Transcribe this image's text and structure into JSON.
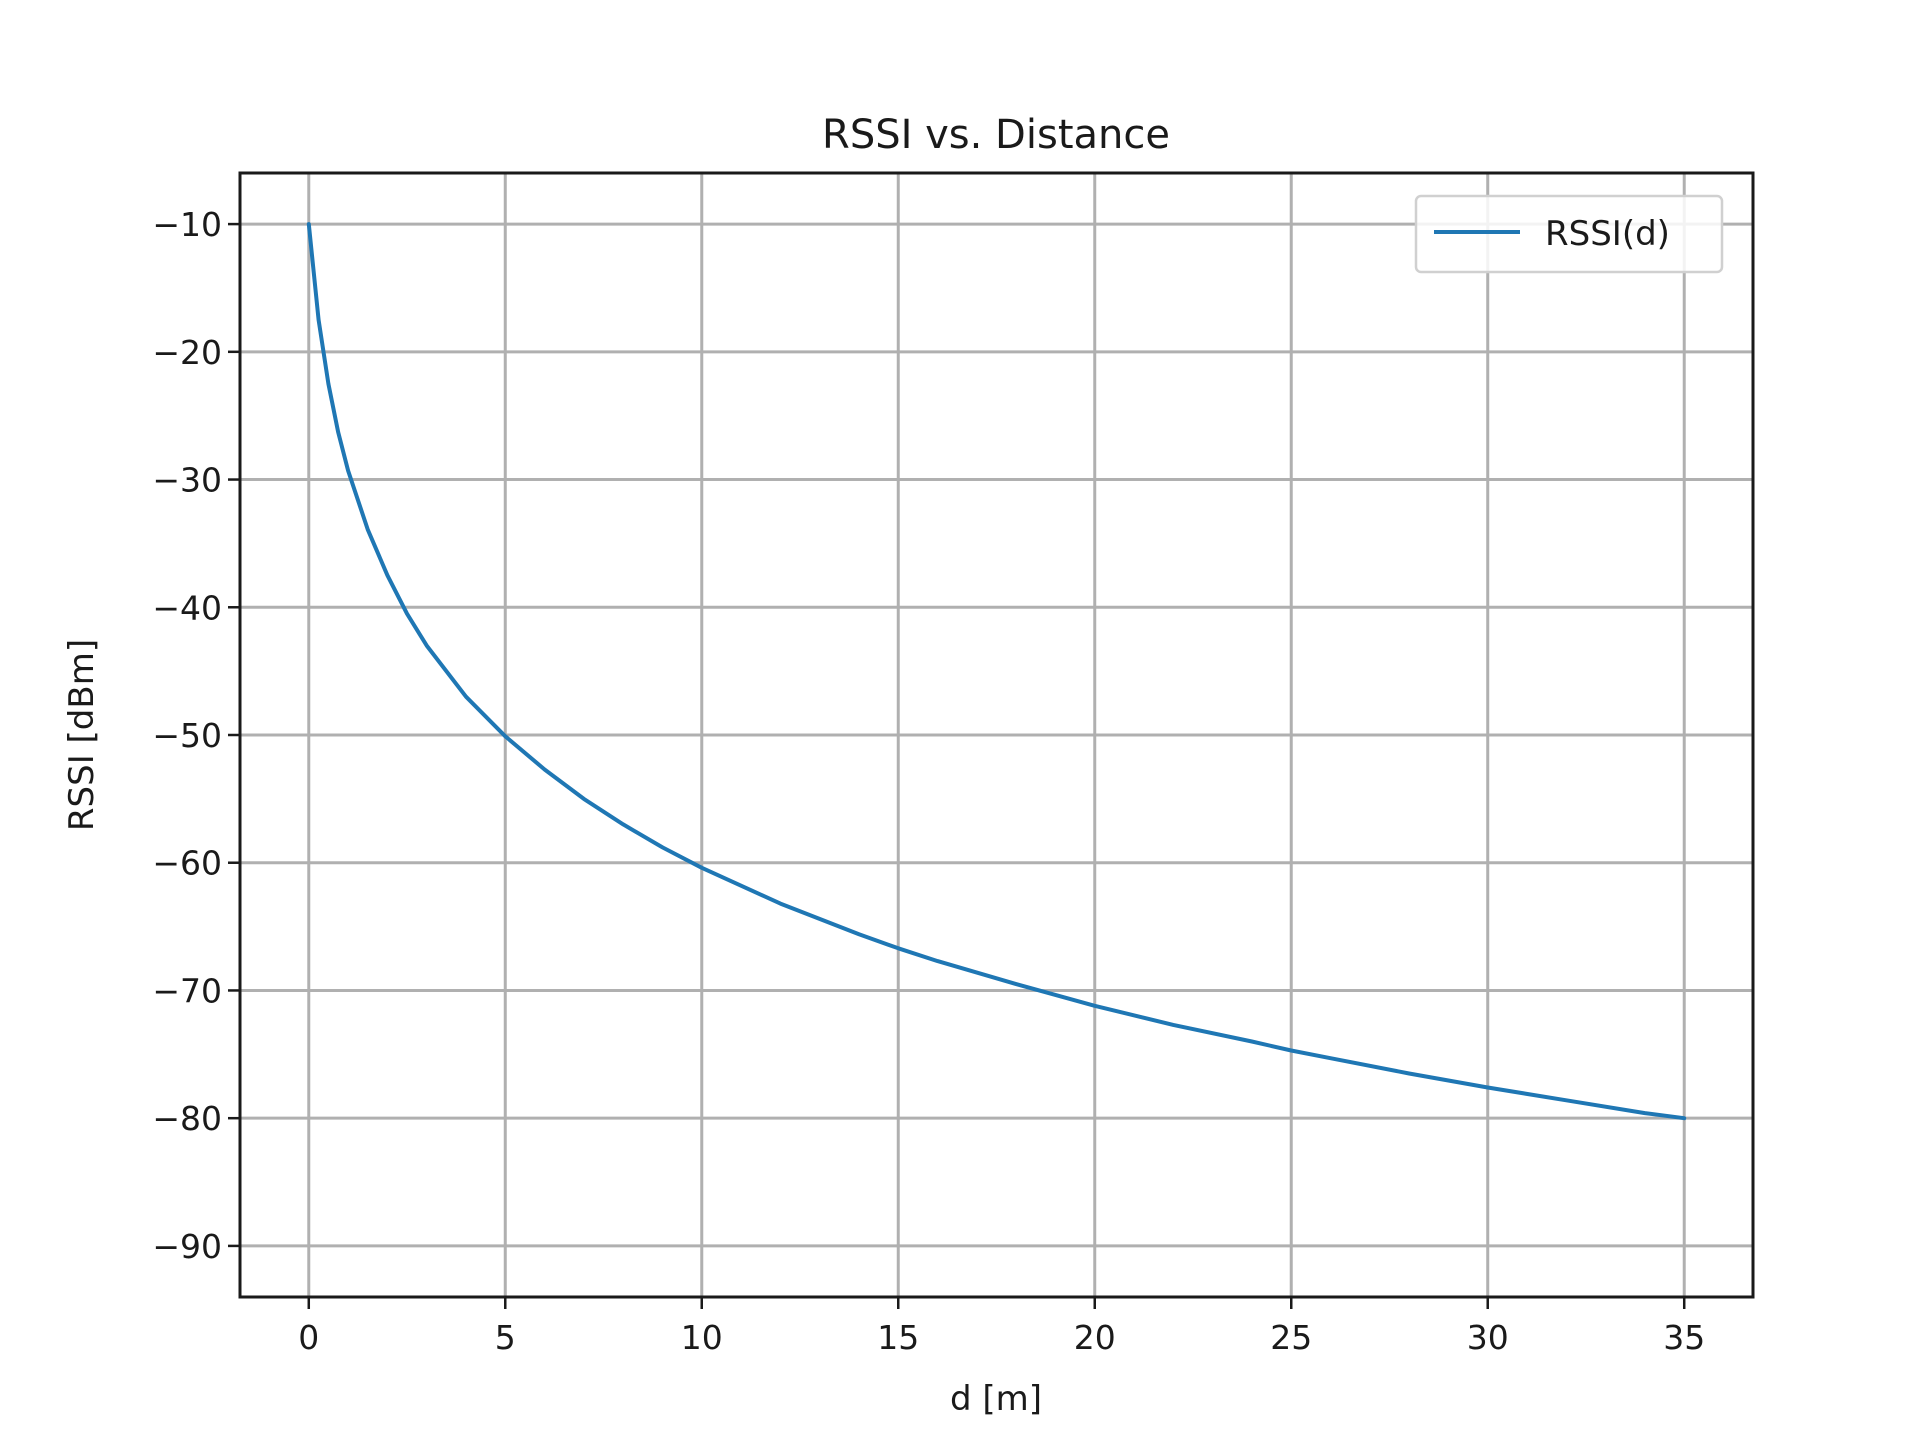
{
  "chart_data": {
    "type": "line",
    "title": "RSSI vs. Distance",
    "xlabel": "d [m]",
    "ylabel": "RSSI [dBm]",
    "xlim": [
      -1.75,
      36.75
    ],
    "ylim": [
      -94,
      -6
    ],
    "xticks": [
      0,
      5,
      10,
      15,
      20,
      25,
      30,
      35
    ],
    "xtick_labels": [
      "0",
      "5",
      "10",
      "15",
      "20",
      "25",
      "30",
      "35"
    ],
    "yticks": [
      -10,
      -20,
      -30,
      -40,
      -50,
      -60,
      -70,
      -80,
      -90
    ],
    "ytick_labels": [
      "−10",
      "−20",
      "−30",
      "−40",
      "−50",
      "−60",
      "−70",
      "−80",
      "−90"
    ],
    "grid": true,
    "legend_position": "upper right",
    "series": [
      {
        "name": "RSSI(d)",
        "color": "#1f77b4",
        "x": [
          0,
          0.25,
          0.5,
          0.75,
          1,
          1.5,
          2,
          2.5,
          3,
          4,
          5,
          6,
          7,
          8,
          9,
          10,
          12,
          14,
          15,
          16,
          18,
          20,
          22,
          24,
          25,
          26,
          28,
          30,
          32,
          34,
          35
        ],
        "y": [
          -10,
          -17.5,
          -22.5,
          -26.3,
          -29.3,
          -33.9,
          -37.5,
          -40.5,
          -43.0,
          -47.0,
          -50.1,
          -52.7,
          -55.0,
          -57.0,
          -58.8,
          -60.4,
          -63.2,
          -65.6,
          -66.7,
          -67.7,
          -69.5,
          -71.2,
          -72.7,
          -74.0,
          -74.7,
          -75.3,
          -76.5,
          -77.6,
          -78.6,
          -79.6,
          -80.0
        ]
      }
    ]
  }
}
